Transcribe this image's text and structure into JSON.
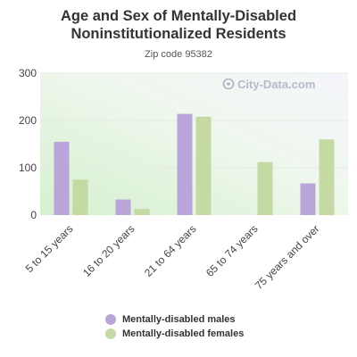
{
  "chart_data": {
    "type": "bar",
    "title": "Age and Sex of Mentally-Disabled Noninstitutionalized Residents",
    "subtitle": "Zip code 95382",
    "watermark": "City-Data.com",
    "categories": [
      "5 to 15 years",
      "16 to 20 years",
      "21 to 64 years",
      "65 to 74 years",
      "75 years and over"
    ],
    "series": [
      {
        "name": "Mentally-disabled males",
        "color": "#b9a5d9",
        "values": [
          155,
          33,
          214,
          0,
          67
        ]
      },
      {
        "name": "Mentally-disabled females",
        "color": "#c5d9a5",
        "values": [
          75,
          13,
          208,
          112,
          160
        ]
      }
    ],
    "y_ticks": [
      0,
      100,
      200,
      300
    ],
    "ylim": [
      0,
      300
    ],
    "grid": true,
    "legend_position": "bottom"
  }
}
